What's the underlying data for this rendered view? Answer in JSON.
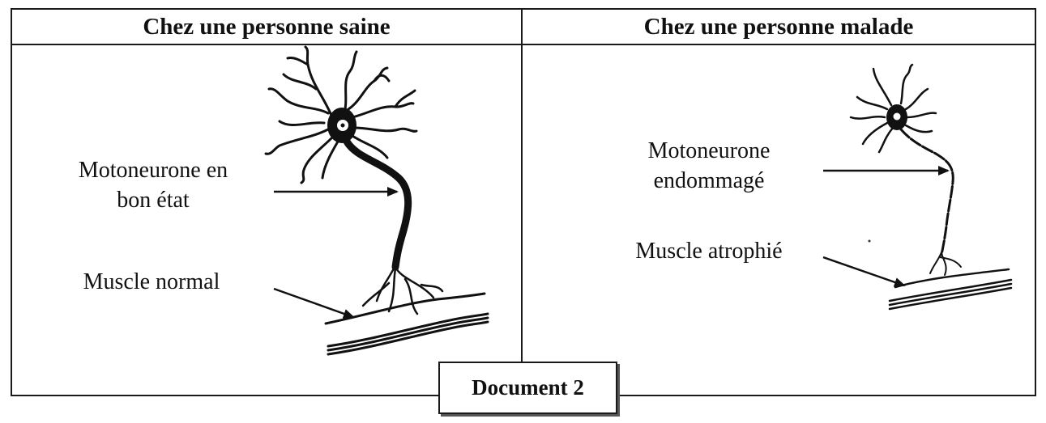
{
  "document": {
    "caption": "Document 2"
  },
  "columns": {
    "left": {
      "title": "Chez une personne saine",
      "neuron_label_line1": "Motoneurone en",
      "neuron_label_line2": "bon état",
      "muscle_label": "Muscle normal"
    },
    "right": {
      "title": "Chez une personne malade",
      "neuron_label_line1": "Motoneurone",
      "neuron_label_line2": "endommagé",
      "muscle_label": "Muscle atrophié"
    }
  }
}
